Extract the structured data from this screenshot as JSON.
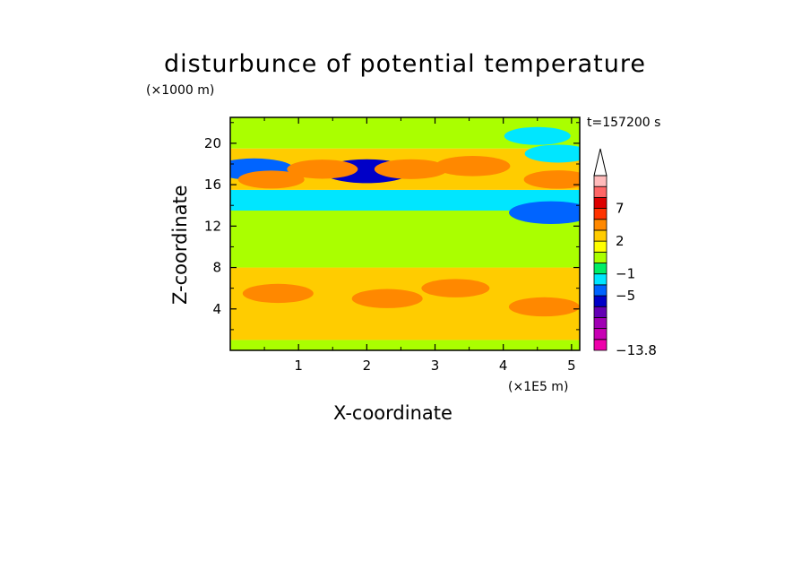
{
  "chart_data": {
    "type": "heatmap",
    "title": "disturbunce of potential temperature",
    "xlabel": "X-coordinate",
    "ylabel": "Z-coordinate",
    "x_unit": "(×1E5 m)",
    "y_unit": "(×1000 m)",
    "time_label": "t=157200 s",
    "xlim": [
      0,
      5.12
    ],
    "ylim": [
      0,
      22.5
    ],
    "x_ticks": [
      "1",
      "2",
      "3",
      "4",
      "5"
    ],
    "y_ticks": [
      "4",
      "8",
      "12",
      "16",
      "20"
    ],
    "colorbar": {
      "levels": [
        -13.8,
        -11,
        -9,
        -7,
        -5,
        -3,
        -1,
        0,
        1,
        2,
        3,
        5,
        7,
        9,
        12
      ],
      "labels": [
        "7",
        "2",
        "-1",
        "-5",
        "-13.8"
      ],
      "colors": [
        "#ee00aa",
        "#c800b4",
        "#a000b4",
        "#6400b4",
        "#0000c8",
        "#0064ff",
        "#00e6ff",
        "#00ee66",
        "#aaff00",
        "#ffff00",
        "#ffcc00",
        "#ff8800",
        "#ff3300",
        "#dd0000",
        "#ff6666",
        "#ffbbbb"
      ]
    },
    "layers": [
      {
        "z_from": 0,
        "z_to": 1.0,
        "value": 0.8,
        "note_value": "green surface layer"
      },
      {
        "z_from": 1.0,
        "z_to": 8.0,
        "value": 2.4
      },
      {
        "z_from": 8.0,
        "z_to": 13.5,
        "value": 0.2
      },
      {
        "z_from": 13.5,
        "z_to": 15.5,
        "value": -1.5
      },
      {
        "z_from": 15.5,
        "z_to": 19.5,
        "value": 2.2
      },
      {
        "z_from": 19.5,
        "z_to": 22.5,
        "value": 0.4
      }
    ],
    "features": [
      {
        "x": 0.7,
        "z": 5.5,
        "value": 3.5
      },
      {
        "x": 2.3,
        "z": 5.0,
        "value": 3.5
      },
      {
        "x": 3.3,
        "z": 6.0,
        "value": 3.2
      },
      {
        "x": 4.6,
        "z": 4.2,
        "value": 3.5
      },
      {
        "x": 2.0,
        "z": 17.3,
        "value": -5.5
      },
      {
        "x": 0.35,
        "z": 17.5,
        "value": -4.5
      },
      {
        "x": 4.7,
        "z": 13.3,
        "value": -5.0
      },
      {
        "x": 3.55,
        "z": 17.8,
        "value": 4.0
      },
      {
        "x": 1.35,
        "z": 17.5,
        "value": 3.5
      },
      {
        "x": 2.65,
        "z": 17.5,
        "value": 3.8
      },
      {
        "x": 0.6,
        "z": 16.5,
        "value": 3.0
      },
      {
        "x": 4.8,
        "z": 16.5,
        "value": 3.2
      },
      {
        "x": 4.5,
        "z": 20.7,
        "value": -3.0
      },
      {
        "x": 4.8,
        "z": 19.0,
        "value": -3.0
      }
    ]
  }
}
